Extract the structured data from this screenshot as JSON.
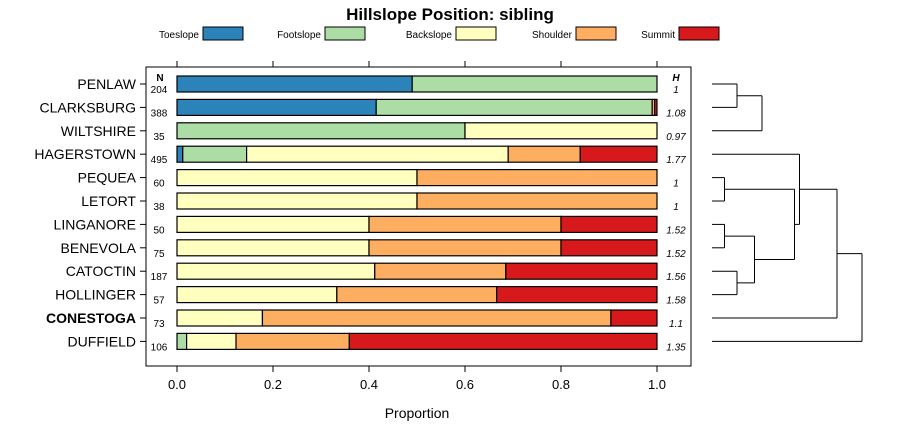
{
  "chart_data": {
    "type": "bar",
    "orientation": "horizontal",
    "stacked": true,
    "title": "Hillslope Position: sibling",
    "xlabel": "Proportion",
    "xlim": [
      0,
      1
    ],
    "x_ticks": [
      "0.0",
      "0.2",
      "0.4",
      "0.6",
      "0.8",
      "1.0"
    ],
    "n_header": "N",
    "h_header": "H",
    "legend_position": "top",
    "series": [
      {
        "name": "Toeslope",
        "color": "#2b83ba"
      },
      {
        "name": "Footslope",
        "color": "#abdda4"
      },
      {
        "name": "Backslope",
        "color": "#ffffbf"
      },
      {
        "name": "Shoulder",
        "color": "#fdae61"
      },
      {
        "name": "Summit",
        "color": "#d7191c"
      }
    ],
    "rows": [
      {
        "label": "PENLAW",
        "bold": false,
        "n": "204",
        "h": "1",
        "values": [
          0.49,
          0.51,
          0,
          0,
          0
        ]
      },
      {
        "label": "CLARKSBURG",
        "bold": false,
        "n": "388",
        "h": "1.08",
        "values": [
          0.415,
          0.575,
          0,
          0.005,
          0.005
        ]
      },
      {
        "label": "WILTSHIRE",
        "bold": false,
        "n": "35",
        "h": "0.97",
        "values": [
          0,
          0.6,
          0.4,
          0,
          0
        ]
      },
      {
        "label": "HAGERSTOWN",
        "bold": false,
        "n": "495",
        "h": "1.77",
        "values": [
          0.012,
          0.133,
          0.545,
          0.15,
          0.16
        ]
      },
      {
        "label": "PEQUEA",
        "bold": false,
        "n": "60",
        "h": "1",
        "values": [
          0,
          0,
          0.5,
          0.5,
          0
        ]
      },
      {
        "label": "LETORT",
        "bold": false,
        "n": "38",
        "h": "1",
        "values": [
          0,
          0,
          0.5,
          0.5,
          0
        ]
      },
      {
        "label": "LINGANORE",
        "bold": false,
        "n": "50",
        "h": "1.52",
        "values": [
          0,
          0,
          0.4,
          0.4,
          0.2
        ]
      },
      {
        "label": "BENEVOLA",
        "bold": false,
        "n": "75",
        "h": "1.52",
        "values": [
          0,
          0,
          0.4,
          0.4,
          0.2
        ]
      },
      {
        "label": "CATOCTIN",
        "bold": false,
        "n": "187",
        "h": "1.56",
        "values": [
          0,
          0,
          0.412,
          0.273,
          0.315
        ]
      },
      {
        "label": "HOLLINGER",
        "bold": false,
        "n": "57",
        "h": "1.58",
        "values": [
          0,
          0,
          0.333,
          0.333,
          0.334
        ]
      },
      {
        "label": "CONESTOGA",
        "bold": true,
        "n": "73",
        "h": "1.1",
        "values": [
          0,
          0,
          0.178,
          0.726,
          0.096
        ]
      },
      {
        "label": "DUFFIELD",
        "bold": false,
        "n": "106",
        "h": "1.35",
        "values": [
          0,
          0.02,
          0.103,
          0.236,
          0.641
        ]
      }
    ],
    "dendrogram": {
      "type": "hierarchical-clustering",
      "merges": [
        {
          "leaves": [
            0,
            1
          ],
          "height": 0.1
        },
        {
          "leaves": [
            0,
            1,
            2
          ],
          "height": 0.2
        },
        {
          "leaves": [
            4,
            5
          ],
          "height": 0.05
        },
        {
          "leaves": [
            6,
            7
          ],
          "height": 0.05
        },
        {
          "leaves": [
            8,
            9
          ],
          "height": 0.1
        },
        {
          "leaves": [
            6,
            7,
            8,
            9
          ],
          "height": 0.17
        },
        {
          "leaves": [
            4,
            5,
            6,
            7,
            8,
            9
          ],
          "height": 0.33
        },
        {
          "leaves": [
            3,
            4,
            5,
            6,
            7,
            8,
            9
          ],
          "height": 0.35
        },
        {
          "leaves": [
            3,
            4,
            5,
            6,
            7,
            8,
            9,
            10
          ],
          "height": 0.5
        },
        {
          "leaves": [
            3,
            4,
            5,
            6,
            7,
            8,
            9,
            10,
            11
          ],
          "height": 0.6
        }
      ]
    }
  }
}
